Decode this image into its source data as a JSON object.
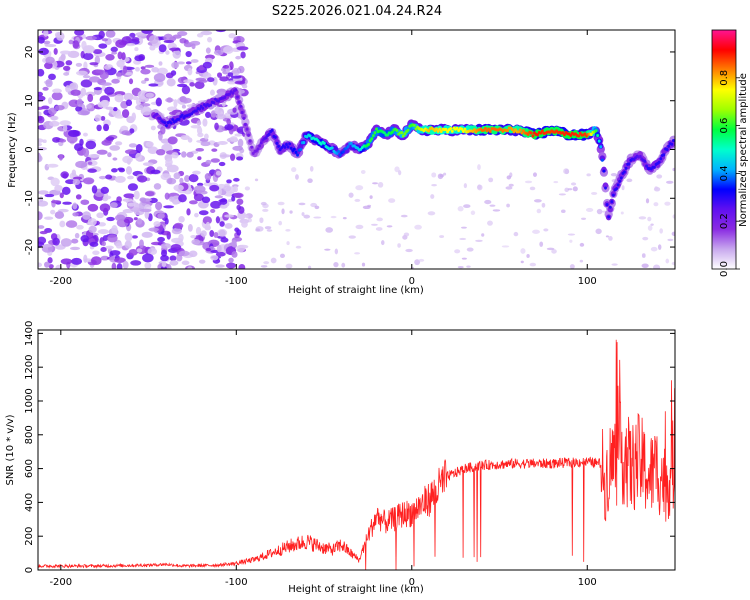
{
  "title": "S225.2026.021.04.24.R24",
  "spectrogram": {
    "xlabel": "Height of straight line (km)",
    "ylabel": "Frequency (Hz)",
    "xlim": [
      -213,
      150
    ],
    "ylim": [
      -24.5,
      24.5
    ],
    "xticks": [
      -200,
      -100,
      0,
      100
    ],
    "yticks": [
      -20,
      -10,
      0,
      10,
      20
    ],
    "colorbar": {
      "label": "Normalized spectral amplitude",
      "range": [
        0,
        1
      ],
      "ticks": [
        "0.0",
        "0.2",
        "0.4",
        "0.6",
        "0.8"
      ],
      "tick_values": [
        0,
        0.2,
        0.4,
        0.6,
        0.8
      ],
      "colors": [
        "#ffffff",
        "#c8a8ee",
        "#8a2be2",
        "#6010f0",
        "#0000ff",
        "#00b4ff",
        "#00ffcc",
        "#00ff40",
        "#a0ff00",
        "#ffff00",
        "#ff8000",
        "#ff0000",
        "#ff1493"
      ]
    }
  },
  "chart_data": [
    {
      "type": "heatmap",
      "title": "S225.2026.021.04.24.R24",
      "xlabel": "Height of straight line (km)",
      "ylabel": "Frequency (Hz)",
      "xlim": [
        -213,
        150
      ],
      "ylim": [
        -24.5,
        24.5
      ],
      "colorbar_label": "Normalized spectral amplitude",
      "colorbar_range": [
        0,
        1
      ],
      "ridge_track": {
        "x": [
          -145,
          -140,
          -135,
          -100,
          -90,
          -80,
          -75,
          -70,
          -65,
          -60,
          -55,
          -50,
          -45,
          -40,
          -35,
          -30,
          -25,
          -20,
          -15,
          -10,
          -5,
          0,
          5,
          10,
          20,
          30,
          40,
          50,
          60,
          70,
          80,
          90,
          100,
          105,
          108,
          110,
          112,
          115,
          120,
          125,
          130,
          135,
          140,
          145,
          150
        ],
        "y": [
          7,
          5,
          6,
          12,
          -1,
          4,
          0,
          1,
          -1,
          3,
          2,
          1,
          0,
          -1,
          1,
          0,
          1,
          4,
          3,
          4,
          3,
          5,
          4,
          4,
          4,
          4,
          4,
          4,
          4,
          3,
          4,
          3,
          3,
          4,
          0,
          -6,
          -14,
          -9,
          -5,
          -2,
          -1,
          -4,
          -3,
          0,
          2
        ],
        "amplitude": [
          0.25,
          0.3,
          0.3,
          0.25,
          0.2,
          0.3,
          0.3,
          0.3,
          0.35,
          0.45,
          0.5,
          0.5,
          0.45,
          0.35,
          0.4,
          0.45,
          0.6,
          0.6,
          0.55,
          0.6,
          0.65,
          0.6,
          0.7,
          0.8,
          0.75,
          0.75,
          0.85,
          0.85,
          0.8,
          0.9,
          0.88,
          0.9,
          0.88,
          0.6,
          0.4,
          0.3,
          0.3,
          0.3,
          0.3,
          0.3,
          0.25,
          0.3,
          0.3,
          0.3,
          0.3
        ]
      },
      "noise_region": {
        "x": [
          -213,
          -95
        ],
        "amplitude": [
          0.05,
          0.2
        ]
      }
    },
    {
      "type": "line",
      "xlabel": "Height of straight line (km)",
      "ylabel": "SNR (10 * v/v)",
      "xlim": [
        -213,
        150
      ],
      "ylim": [
        0,
        1420
      ],
      "xticks": [
        -200,
        -100,
        0,
        100
      ],
      "yticks": [
        0,
        200,
        400,
        600,
        800,
        1000,
        1200,
        1400
      ],
      "color": "#ff2020",
      "x": [
        -213,
        -180,
        -150,
        -140,
        -130,
        -110,
        -100,
        -90,
        -80,
        -70,
        -60,
        -50,
        -45,
        -40,
        -35,
        -30,
        -25,
        -20,
        -15,
        -10,
        -5,
        0,
        5,
        10,
        15,
        20,
        30,
        40,
        60,
        80,
        100,
        108,
        110,
        112,
        115,
        120,
        125,
        130,
        135,
        140,
        145,
        150
      ],
      "y": [
        20,
        20,
        25,
        30,
        20,
        25,
        40,
        60,
        100,
        140,
        170,
        130,
        120,
        150,
        100,
        60,
        200,
        320,
        280,
        300,
        330,
        340,
        380,
        420,
        480,
        550,
        600,
        620,
        630,
        630,
        640,
        630,
        500,
        600,
        650,
        700,
        600,
        650,
        550,
        600,
        500,
        650
      ]
    }
  ],
  "snr": {
    "xlabel": "Height of straight line (km)",
    "ylabel": "SNR (10 * v/v)",
    "xticks": [
      -200,
      -100,
      0,
      100
    ],
    "yticks": [
      0,
      200,
      400,
      600,
      800,
      1000,
      1200,
      1400
    ]
  }
}
